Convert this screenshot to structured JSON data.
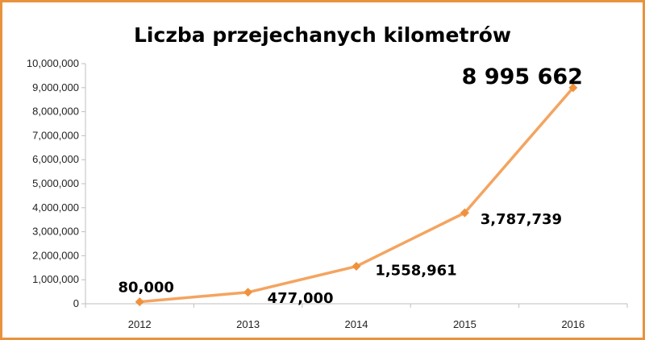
{
  "chart_data": {
    "type": "line",
    "title": "Liczba przejechanych kilometrów",
    "categories": [
      "2012",
      "2013",
      "2014",
      "2015",
      "2016"
    ],
    "values": [
      80000,
      477000,
      1558961,
      3787739,
      8995662
    ],
    "data_labels": [
      "80,000",
      "477,000",
      "1,558,961",
      "3,787,739",
      "8 995 662"
    ],
    "ylim": [
      0,
      10000000
    ],
    "yticks": [
      "0",
      "1,000,000",
      "2,000,000",
      "3,000,000",
      "4,000,000",
      "5,000,000",
      "6,000,000",
      "7,000,000",
      "8,000,000",
      "9,000,000",
      "10,000,000"
    ],
    "grid": false,
    "legend": "none",
    "colors": {
      "line": "#F4A460",
      "marker": "#F0923C",
      "border": "#E8923E",
      "axis": "#BFBFBF"
    }
  }
}
